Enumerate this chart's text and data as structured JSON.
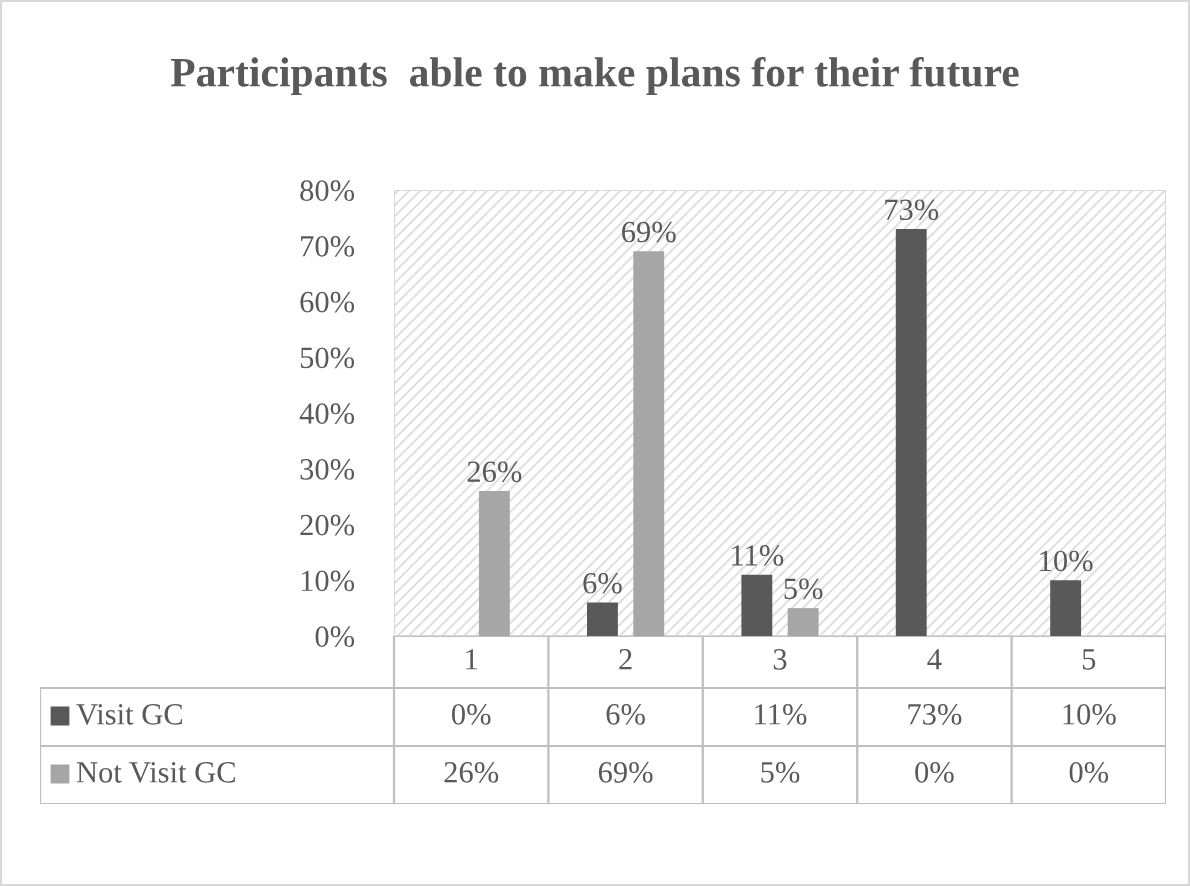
{
  "chart_data": {
    "type": "bar",
    "title": "Participants  able to make plans for their future",
    "categories": [
      "1",
      "2",
      "3",
      "4",
      "5"
    ],
    "series": [
      {
        "name": "Visit GC",
        "color": "#595959",
        "values": [
          0,
          6,
          11,
          73,
          10
        ],
        "value_labels": [
          "0%",
          "6%",
          "11%",
          "73%",
          "10%"
        ]
      },
      {
        "name": "Not Visit GC",
        "color": "#a6a6a6",
        "values": [
          26,
          69,
          5,
          0,
          0
        ],
        "value_labels": [
          "26%",
          "69%",
          "5%",
          "0%",
          "0%"
        ]
      }
    ],
    "ylim": [
      0,
      80
    ],
    "yticks": [
      {
        "value": 0,
        "label": "0%"
      },
      {
        "value": 10,
        "label": "10%"
      },
      {
        "value": 20,
        "label": "20%"
      },
      {
        "value": 30,
        "label": "30%"
      },
      {
        "value": 40,
        "label": "40%"
      },
      {
        "value": 50,
        "label": "50%"
      },
      {
        "value": 60,
        "label": "60%"
      },
      {
        "value": 70,
        "label": "70%"
      },
      {
        "value": 80,
        "label": "80%"
      }
    ],
    "legend": "bottom",
    "grid": false
  }
}
